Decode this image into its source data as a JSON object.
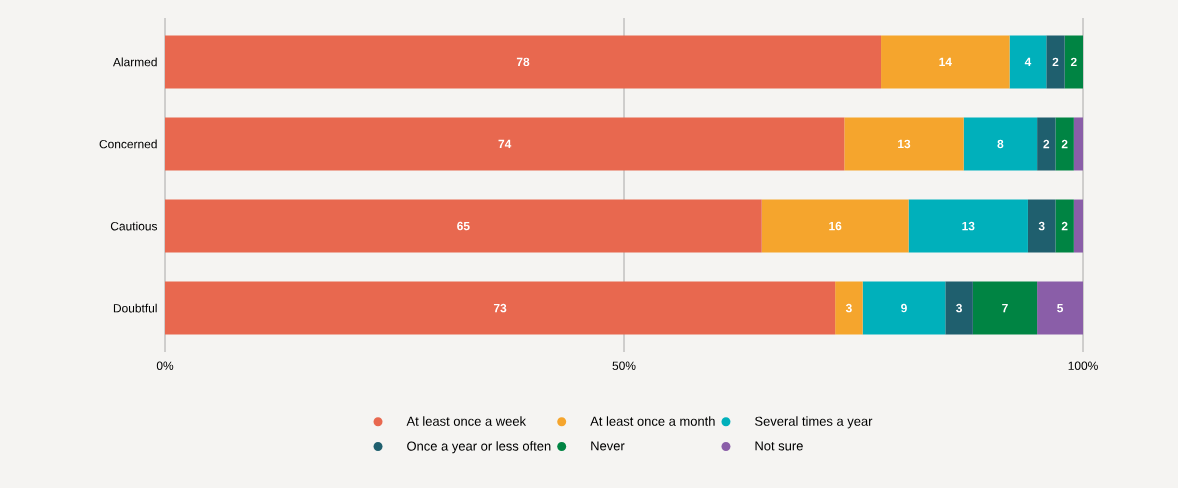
{
  "chart_data": {
    "type": "bar",
    "orientation": "horizontal",
    "stacked": true,
    "categories": [
      "Alarmed",
      "Concerned",
      "Cautious",
      "Doubtful"
    ],
    "series": [
      {
        "name": "At least once a week",
        "color": "#e8684f",
        "values": [
          78,
          74,
          65,
          73
        ],
        "value_labels": [
          "78",
          "74",
          "65",
          "73"
        ]
      },
      {
        "name": "At least once a month",
        "color": "#f5a52d",
        "values": [
          14,
          13,
          16,
          3
        ],
        "value_labels": [
          "14",
          "13",
          "16",
          "3"
        ]
      },
      {
        "name": "Several times a year",
        "color": "#00b0bb",
        "values": [
          4,
          8,
          13,
          9
        ],
        "value_labels": [
          "4",
          "8",
          "13",
          "9"
        ]
      },
      {
        "name": "Once a year or less often",
        "color": "#1f5f6e",
        "values": [
          2,
          2,
          3,
          3
        ],
        "value_labels": [
          "2",
          "2",
          "3",
          "3"
        ]
      },
      {
        "name": "Never",
        "color": "#008443",
        "values": [
          2,
          2,
          2,
          7
        ],
        "value_labels": [
          "2",
          "2",
          "2",
          "7"
        ]
      },
      {
        "name": "Not sure",
        "color": "#8a5ea8",
        "values": [
          0,
          1,
          1,
          5
        ],
        "value_labels": [
          null,
          null,
          null,
          "5"
        ]
      }
    ],
    "xlim": [
      0,
      100
    ],
    "xticks": [
      {
        "value": 0,
        "label": "0%"
      },
      {
        "value": 50,
        "label": "50%"
      },
      {
        "value": 100,
        "label": "100%"
      }
    ],
    "grid": "x",
    "legend": "bottom"
  }
}
